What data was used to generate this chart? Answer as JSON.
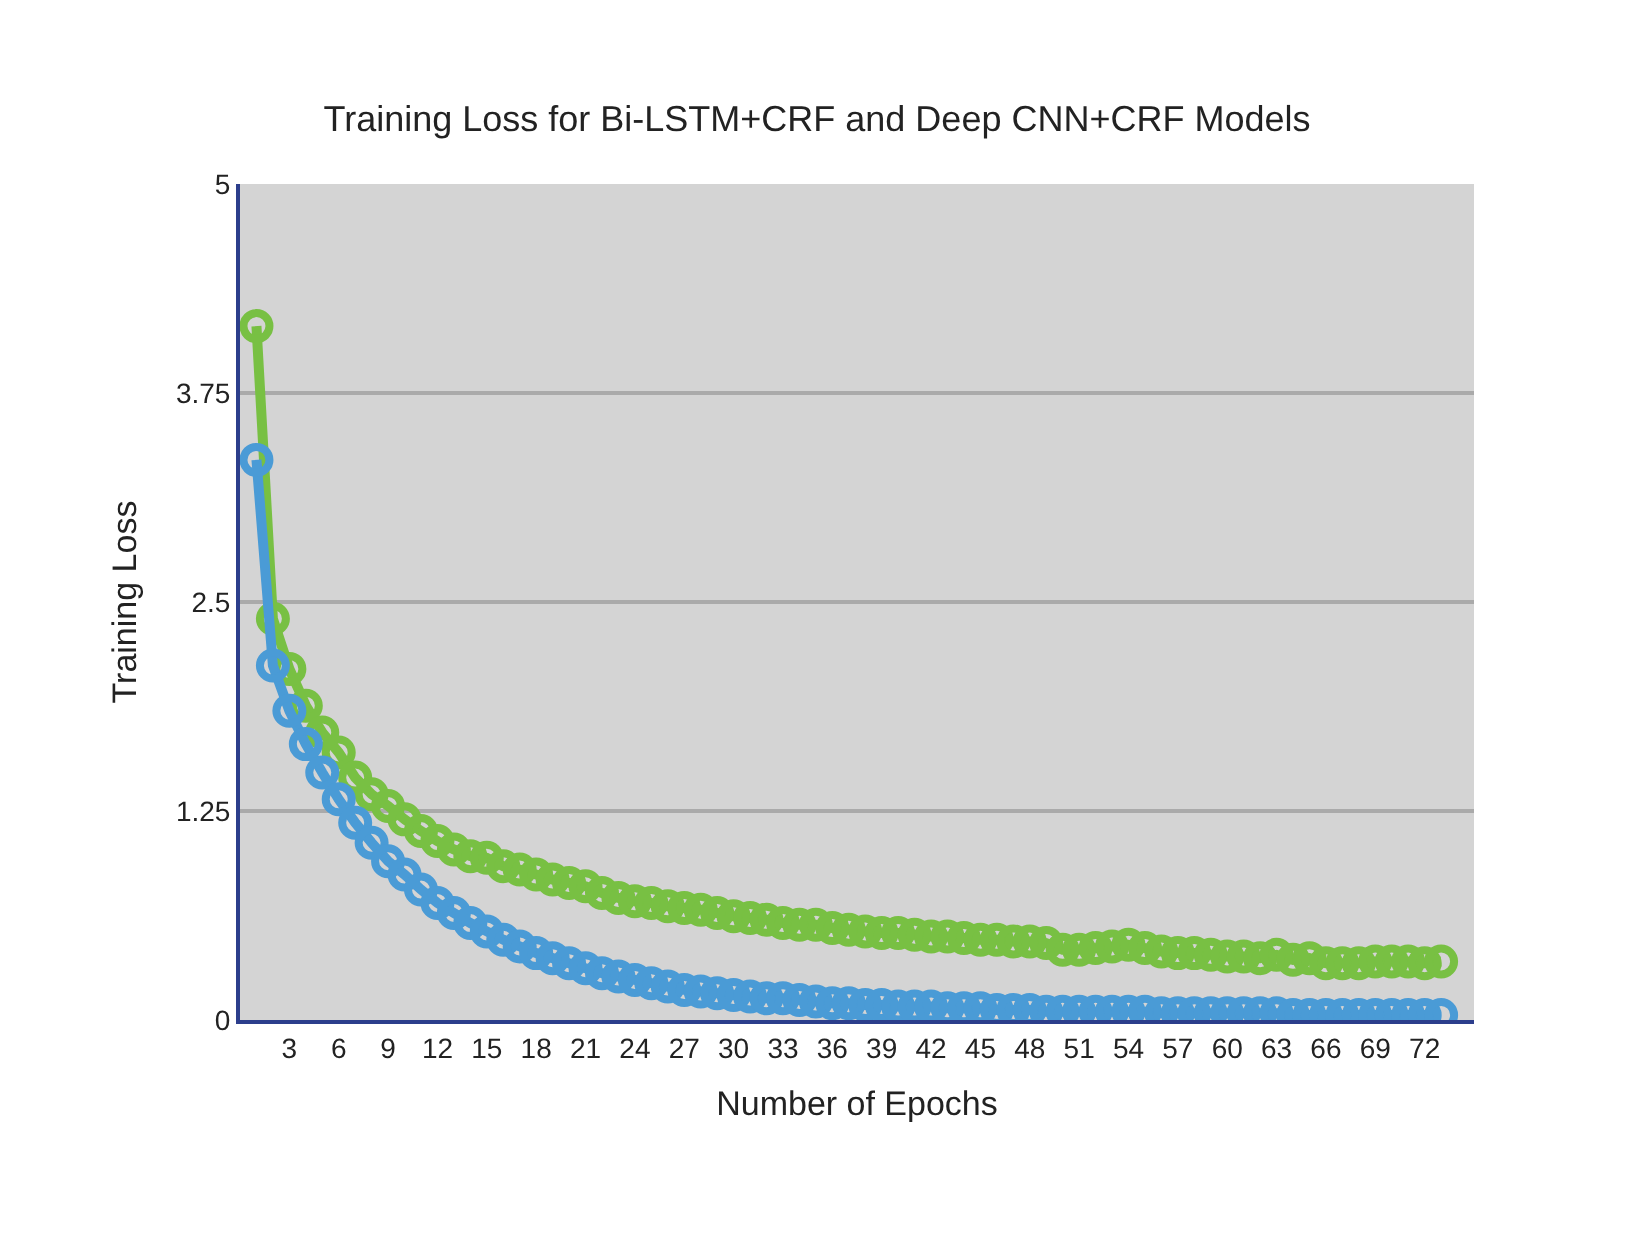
{
  "chart_data": {
    "type": "line",
    "title": "Training Loss for Bi-LSTM+CRF and Deep CNN+CRF Models",
    "xlabel": "Number of Epochs",
    "ylabel": "Training Loss",
    "x": [
      1,
      2,
      3,
      4,
      5,
      6,
      7,
      8,
      9,
      10,
      11,
      12,
      13,
      14,
      15,
      16,
      17,
      18,
      19,
      20,
      21,
      22,
      23,
      24,
      25,
      26,
      27,
      28,
      29,
      30,
      31,
      32,
      33,
      34,
      35,
      36,
      37,
      38,
      39,
      40,
      41,
      42,
      43,
      44,
      45,
      46,
      47,
      48,
      49,
      50,
      51,
      52,
      53,
      54,
      55,
      56,
      57,
      58,
      59,
      60,
      61,
      62,
      63,
      64,
      65,
      66,
      67,
      68,
      69,
      70,
      71,
      72,
      73
    ],
    "series": [
      {
        "color": "#4a9bd6",
        "values": [
          3.35,
          2.12,
          1.85,
          1.65,
          1.48,
          1.32,
          1.18,
          1.06,
          0.95,
          0.87,
          0.78,
          0.7,
          0.64,
          0.58,
          0.53,
          0.48,
          0.44,
          0.4,
          0.37,
          0.34,
          0.31,
          0.28,
          0.26,
          0.24,
          0.22,
          0.2,
          0.18,
          0.17,
          0.16,
          0.15,
          0.14,
          0.13,
          0.13,
          0.12,
          0.11,
          0.1,
          0.1,
          0.09,
          0.09,
          0.08,
          0.08,
          0.08,
          0.07,
          0.07,
          0.07,
          0.06,
          0.06,
          0.06,
          0.05,
          0.05,
          0.05,
          0.05,
          0.05,
          0.05,
          0.05,
          0.04,
          0.04,
          0.04,
          0.04,
          0.04,
          0.04,
          0.04,
          0.04,
          0.03,
          0.03,
          0.03,
          0.03,
          0.03,
          0.03,
          0.03,
          0.03,
          0.03,
          0.03
        ]
      },
      {
        "color": "#78c043",
        "values": [
          4.15,
          2.4,
          2.1,
          1.88,
          1.72,
          1.6,
          1.45,
          1.35,
          1.28,
          1.2,
          1.13,
          1.07,
          1.02,
          0.98,
          0.97,
          0.92,
          0.9,
          0.87,
          0.84,
          0.82,
          0.8,
          0.76,
          0.73,
          0.71,
          0.7,
          0.68,
          0.67,
          0.66,
          0.64,
          0.62,
          0.61,
          0.6,
          0.58,
          0.57,
          0.57,
          0.55,
          0.54,
          0.53,
          0.52,
          0.52,
          0.51,
          0.5,
          0.5,
          0.49,
          0.48,
          0.48,
          0.47,
          0.47,
          0.46,
          0.42,
          0.42,
          0.43,
          0.44,
          0.45,
          0.43,
          0.41,
          0.4,
          0.4,
          0.39,
          0.38,
          0.38,
          0.37,
          0.39,
          0.36,
          0.37,
          0.34,
          0.34,
          0.34,
          0.35,
          0.35,
          0.35,
          0.34,
          0.35
        ]
      }
    ],
    "xlim": [
      0,
      75
    ],
    "xticks": [
      3,
      6,
      9,
      12,
      15,
      18,
      21,
      24,
      27,
      30,
      33,
      36,
      39,
      42,
      45,
      48,
      51,
      54,
      57,
      60,
      63,
      66,
      69,
      72
    ],
    "ylim": [
      0,
      5
    ],
    "yticks": [
      0,
      1.25,
      2.5,
      3.75,
      5
    ],
    "grid": "y",
    "marker": "circle",
    "line_style": "solid"
  }
}
